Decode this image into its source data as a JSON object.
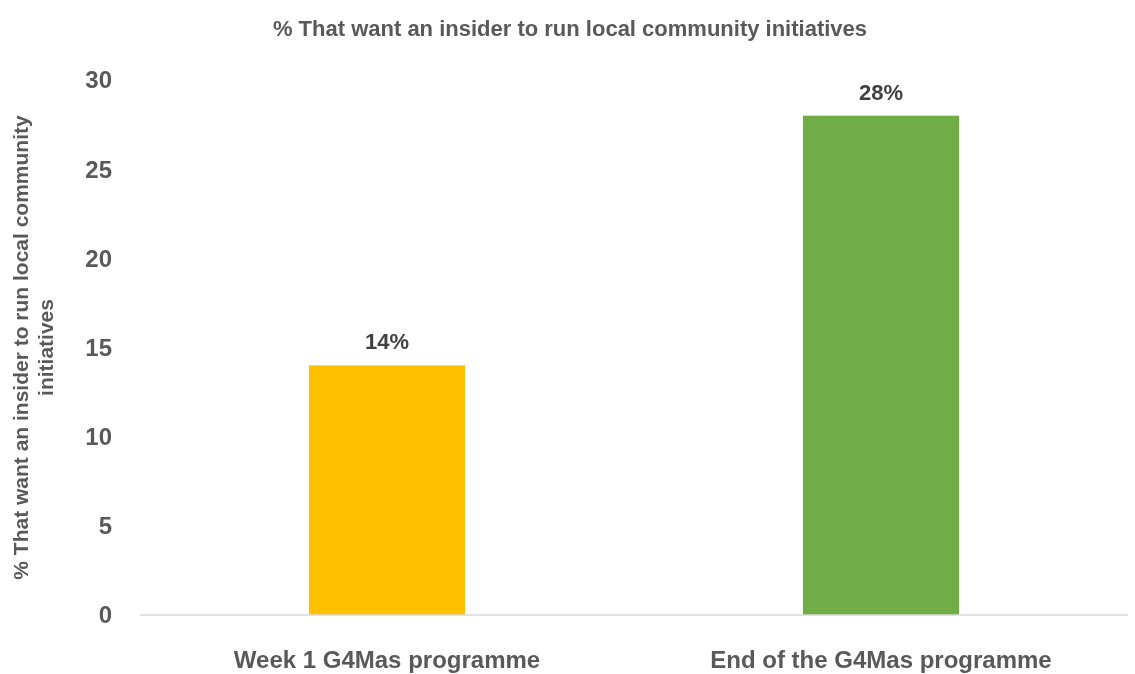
{
  "chart_data": {
    "type": "bar",
    "title": "% That want an insider to run local community initiatives",
    "ylabel": "% That want an insider to run local community initiatives",
    "categories": [
      "Week 1 G4Mas programme",
      "End of the G4Mas programme"
    ],
    "values": [
      14,
      28
    ],
    "colors": [
      "#ffc000",
      "#70ad47"
    ],
    "value_labels": [
      "14%",
      "28%"
    ],
    "ylim": [
      0,
      30
    ],
    "yticks": [
      0,
      5,
      10,
      15,
      20,
      25,
      30
    ],
    "grid": false
  }
}
